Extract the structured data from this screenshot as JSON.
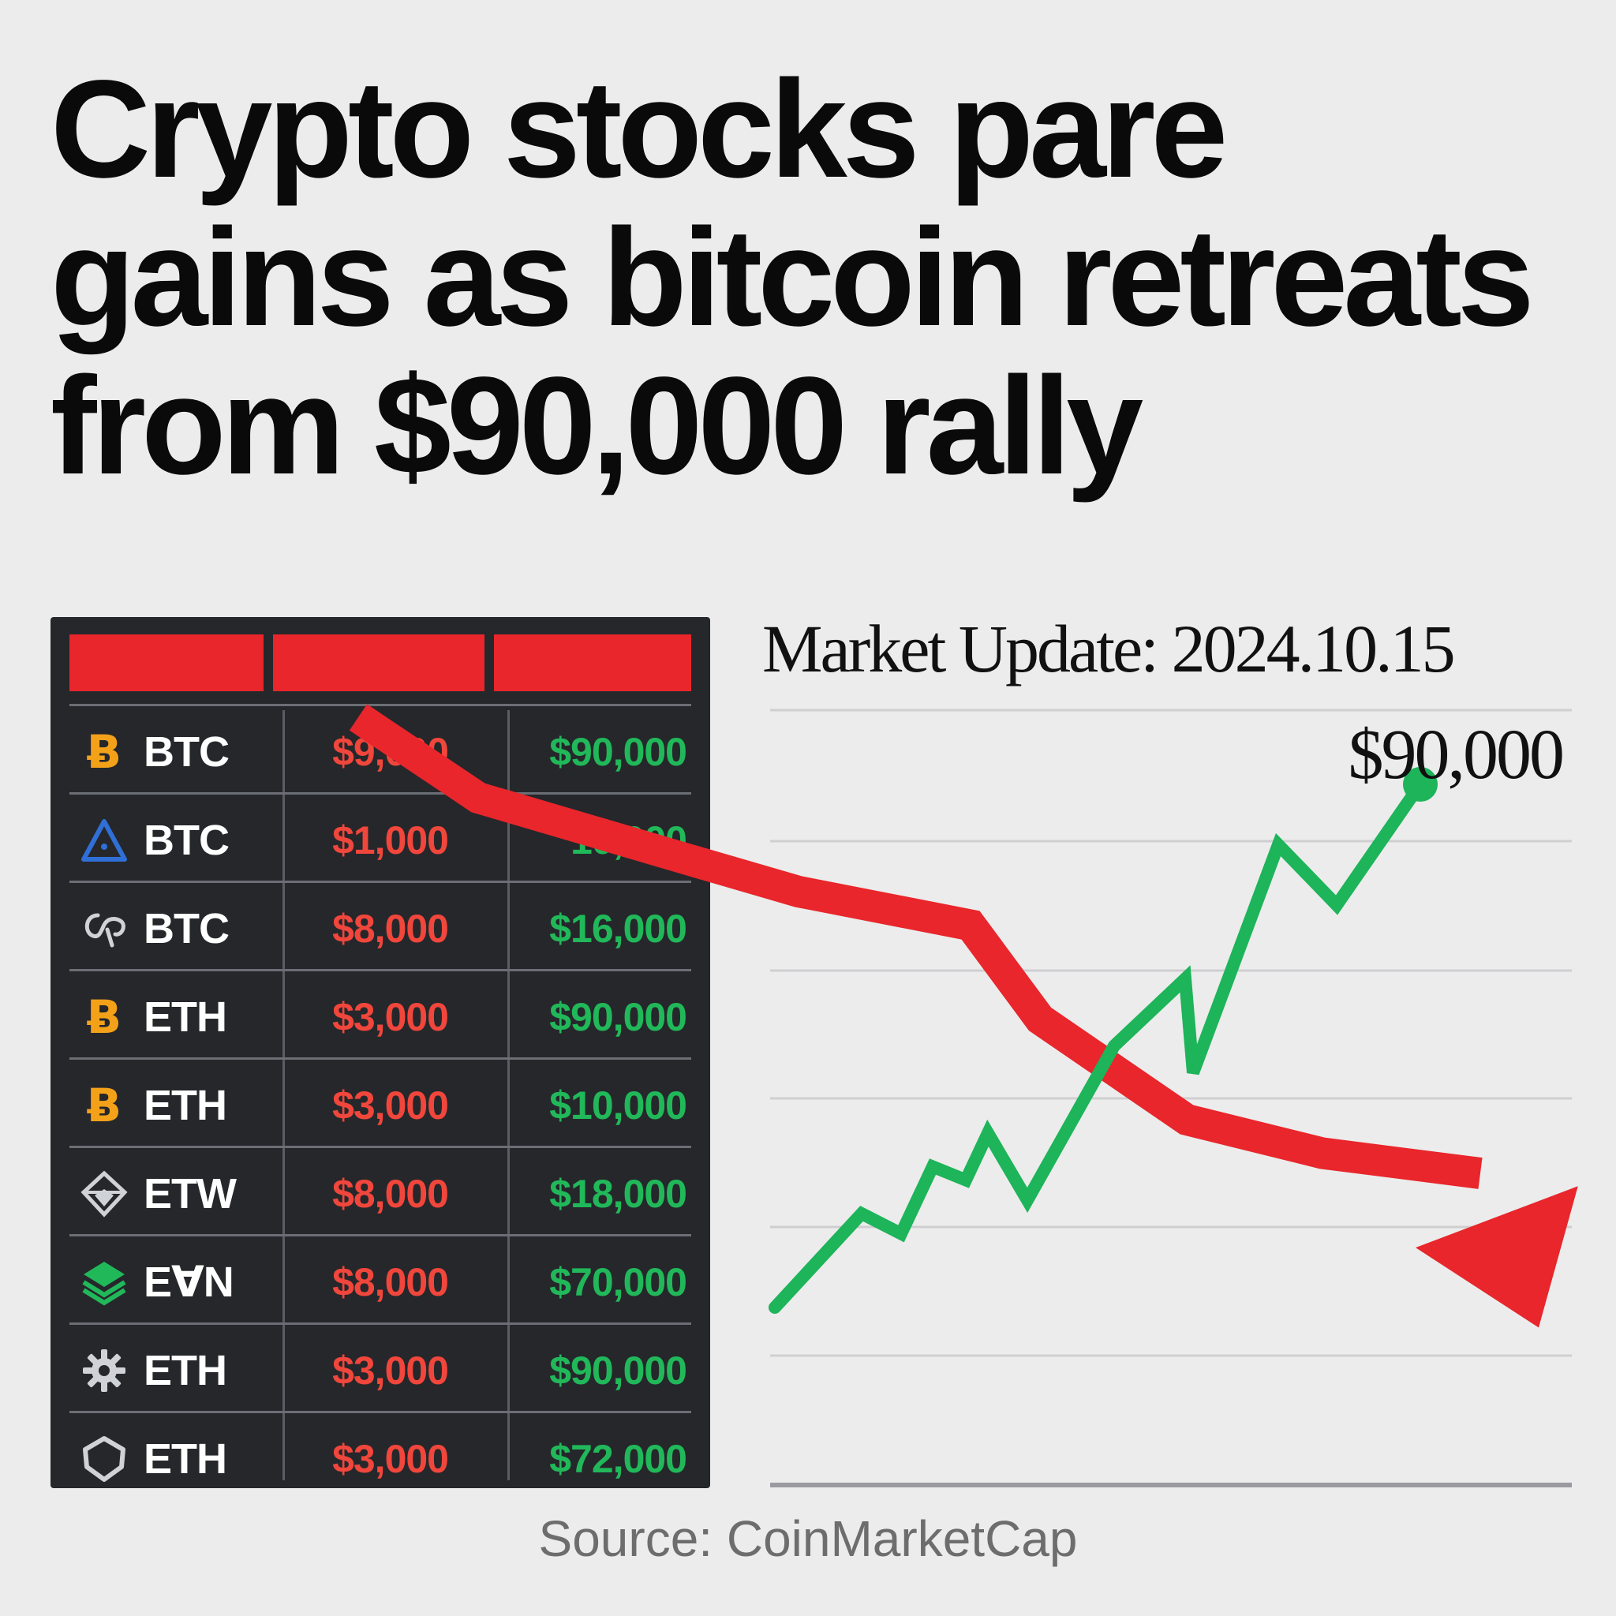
{
  "headline": {
    "line1": "Crypto stocks pare",
    "line2": "gains as bitcoin retreats",
    "line3": "from $90,000 rally"
  },
  "table": {
    "header_color": "#e8262b",
    "rows": [
      {
        "icon": "bitcoin-icon",
        "icon_color": "#f4a11a",
        "ticker": "BTC",
        "red": "$9,000",
        "green": "$90,000"
      },
      {
        "icon": "triangle-icon",
        "icon_color": "#2f6fd6",
        "ticker": "BTC",
        "red": "$1,000",
        "green": "10,000"
      },
      {
        "icon": "swirl-icon",
        "icon_color": "#cfd2d6",
        "ticker": "BTC",
        "red": "$8,000",
        "green": "$16,000"
      },
      {
        "icon": "bitcoin-icon",
        "icon_color": "#f4a11a",
        "ticker": "ETH",
        "red": "$3,000",
        "green": "$90,000"
      },
      {
        "icon": "bitcoin-icon",
        "icon_color": "#f4a11a",
        "ticker": "ETH",
        "red": "$3,000",
        "green": "$10,000"
      },
      {
        "icon": "diamond-icon",
        "icon_color": "#cfd2d6",
        "ticker": "EТW",
        "red": "$8,000",
        "green": "$18,000"
      },
      {
        "icon": "layers-icon",
        "icon_color": "#21b85a",
        "ticker": "E∀N",
        "red": "$8,000",
        "green": "$70,000"
      },
      {
        "icon": "gear-icon",
        "icon_color": "#cfd2d6",
        "ticker": "ETH",
        "red": "$3,000",
        "green": "$90,000"
      },
      {
        "icon": "hexagon-icon",
        "icon_color": "#cfd2d6",
        "ticker": "ETH",
        "red": "$3,000",
        "green": "$72,000"
      }
    ]
  },
  "chart_data": {
    "type": "line",
    "title": "Market Update: 2024.10.15",
    "annotation": "$90,000",
    "grid": true,
    "colors": {
      "up": "#1db45a",
      "down": "#e8262b",
      "grid": "#cfcfd2"
    },
    "series": [
      {
        "trend": "up",
        "values": [
          10,
          24,
          21,
          31,
          29,
          36,
          26,
          49,
          59,
          45,
          79,
          70,
          88
        ]
      },
      {
        "trend": "down",
        "values": [
          98,
          86,
          77,
          72,
          67,
          53,
          38,
          33,
          30,
          7
        ]
      }
    ]
  },
  "source": "Source: CoinMarketCap"
}
